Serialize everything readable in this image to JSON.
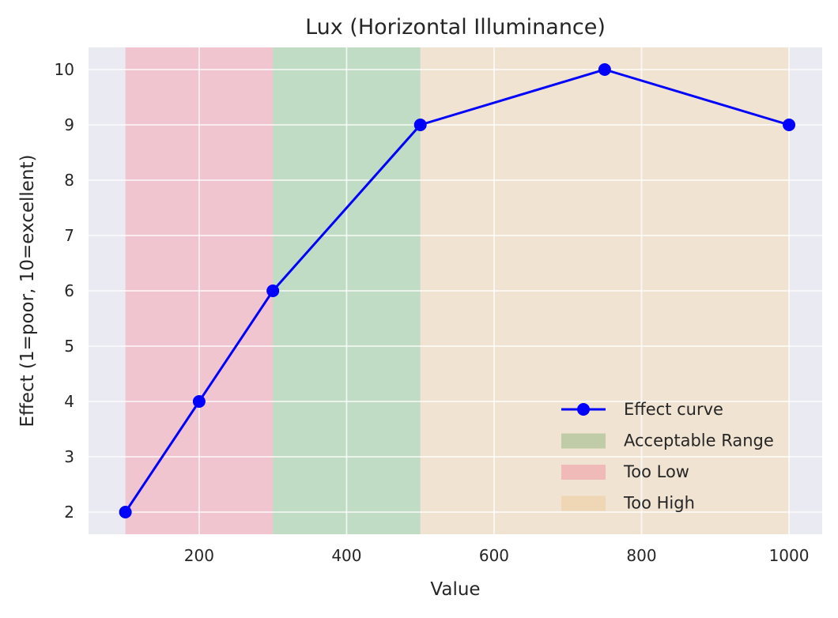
{
  "chart_data": {
    "type": "line",
    "title": "Lux (Horizontal Illuminance)",
    "xlabel": "Value",
    "ylabel": "Effect (1=poor, 10=excellent)",
    "xlim": [
      50,
      1045
    ],
    "ylim": [
      1.6,
      10.4
    ],
    "xticks": [
      200,
      400,
      600,
      800,
      1000
    ],
    "yticks": [
      2,
      3,
      4,
      5,
      6,
      7,
      8,
      9,
      10
    ],
    "grid": true,
    "series": [
      {
        "name": "Effect curve",
        "color": "#0000ff",
        "x": [
          100,
          200,
          300,
          500,
          750,
          1000
        ],
        "y": [
          2,
          4,
          6,
          9,
          10,
          9
        ]
      }
    ],
    "bands": [
      {
        "name": "Too Low",
        "from": 100,
        "to": 300,
        "color": "#f4a6b4"
      },
      {
        "name": "Acceptable Range",
        "from": 300,
        "to": 500,
        "color": "#9fcf9f"
      },
      {
        "name": "Too High",
        "from": 500,
        "to": 1000,
        "color": "#f4dcb8"
      }
    ],
    "legend": {
      "position": "lower-right",
      "entries": [
        {
          "label": "Effect curve",
          "kind": "line",
          "color": "#0000ff"
        },
        {
          "label": "Acceptable Range",
          "kind": "patch",
          "color": "#c0cca8"
        },
        {
          "label": "Too Low",
          "kind": "patch",
          "color": "#efbab8"
        },
        {
          "label": "Too High",
          "kind": "patch",
          "color": "#efd6b4"
        }
      ]
    },
    "colors": {
      "plot_background": "#eaeaf2",
      "grid": "#ffffff"
    }
  }
}
